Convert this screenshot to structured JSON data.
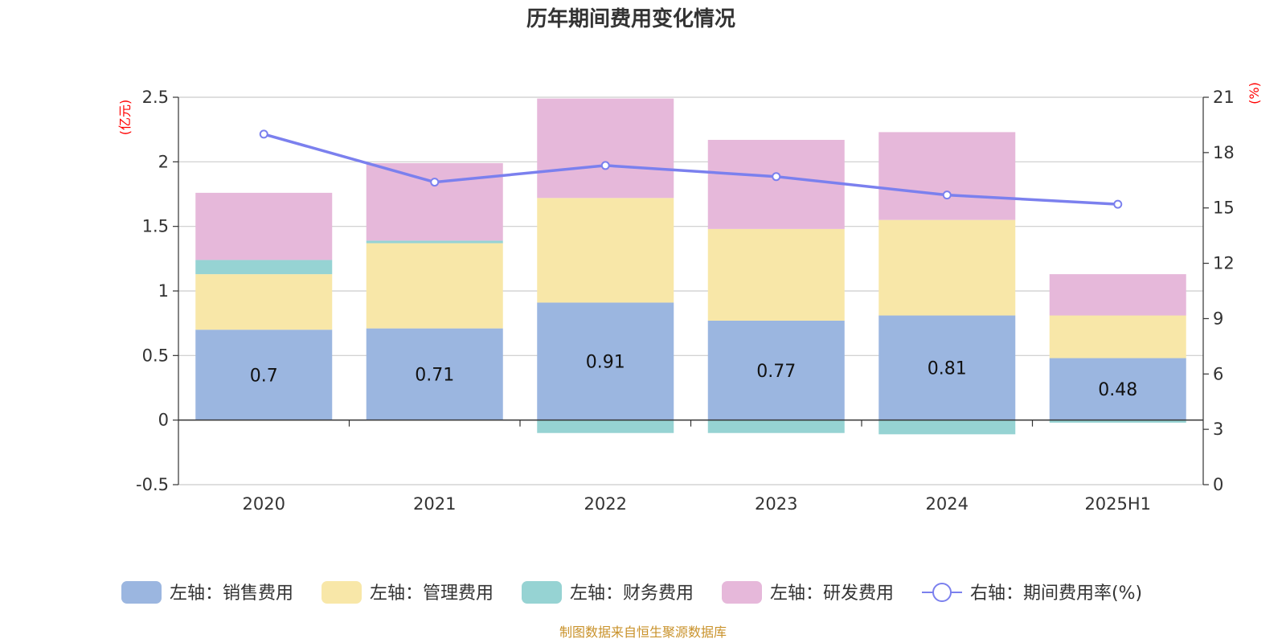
{
  "chart_data": {
    "type": "bar",
    "title": "历年期间费用变化情况",
    "categories": [
      "2020",
      "2021",
      "2022",
      "2023",
      "2024",
      "2025H1"
    ],
    "y_left": {
      "unit": "(亿元)",
      "range": [
        -0.5,
        2.5
      ],
      "ticks": [
        "2.5",
        "2",
        "1.5",
        "1",
        "0.5",
        "0",
        "-0.5"
      ],
      "tick_values": [
        2.5,
        2,
        1.5,
        1,
        0.5,
        0,
        -0.5
      ]
    },
    "y_right": {
      "unit": "(%)",
      "range": [
        0,
        21
      ],
      "ticks": [
        "21",
        "18",
        "15",
        "12",
        "9",
        "6",
        "3",
        "0"
      ],
      "tick_values": [
        21,
        18,
        15,
        12,
        9,
        6,
        3,
        0
      ]
    },
    "series": [
      {
        "name": "左轴：销售费用",
        "kind": "stacked-bar",
        "axis": "left",
        "color": "#9bb6e0",
        "values": [
          0.7,
          0.71,
          0.91,
          0.77,
          0.81,
          0.48
        ],
        "labels": [
          "0.7",
          "0.71",
          "0.91",
          "0.77",
          "0.81",
          "0.48"
        ]
      },
      {
        "name": "左轴：管理费用",
        "kind": "stacked-bar",
        "axis": "left",
        "color": "#f8e7a8",
        "values": [
          0.43,
          0.66,
          0.81,
          0.71,
          0.74,
          0.33
        ]
      },
      {
        "name": "左轴：财务费用",
        "kind": "stacked-bar",
        "axis": "left",
        "color": "#96d3d3",
        "values": [
          0.11,
          0.02,
          -0.1,
          -0.1,
          -0.11,
          -0.02
        ]
      },
      {
        "name": "左轴：研发费用",
        "kind": "stacked-bar",
        "axis": "left",
        "color": "#e6b8da",
        "values": [
          0.52,
          0.6,
          0.77,
          0.69,
          0.68,
          0.32
        ]
      },
      {
        "name": "右轴：期间费用率(%)",
        "kind": "line",
        "axis": "right",
        "color": "#7b80ee",
        "values": [
          19.0,
          16.4,
          17.3,
          16.7,
          15.7,
          15.2
        ]
      }
    ],
    "grid": true,
    "legend_position": "bottom"
  },
  "source": "制图数据来自恒生聚源数据库"
}
